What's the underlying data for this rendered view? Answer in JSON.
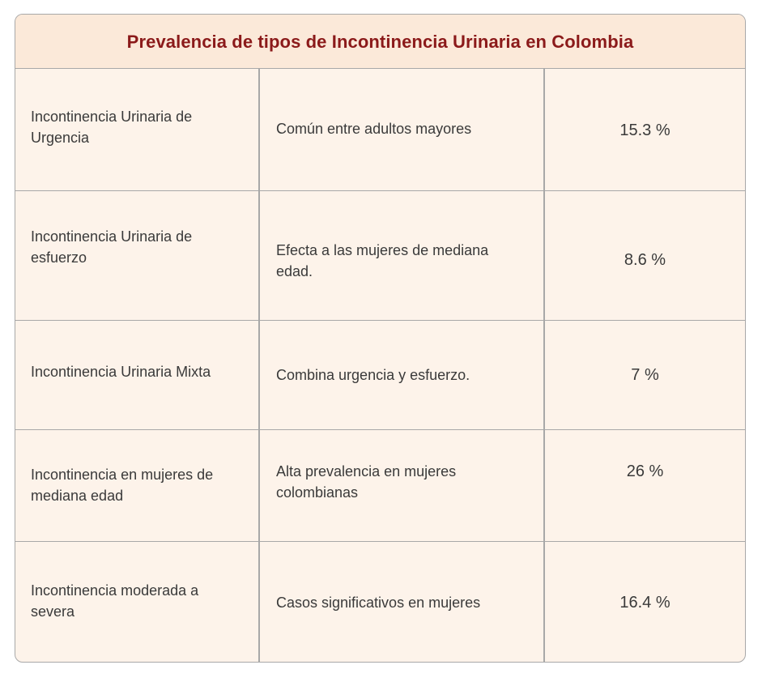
{
  "table": {
    "title": "Prevalencia de tipos de Incontinencia Urinaria en Colombia",
    "rows": [
      {
        "type": "Incontinencia Urinaria de Urgencia",
        "description": "Común entre adultos mayores",
        "prevalence": "15.3 %"
      },
      {
        "type": "Incontinencia Urinaria de esfuerzo",
        "description": "Efecta a las mujeres de mediana edad.",
        "prevalence": "8.6 %"
      },
      {
        "type": "Incontinencia Urinaria Mixta",
        "description": "Combina urgencia y esfuerzo.",
        "prevalence": "7 %"
      },
      {
        "type": "Incontinencia en mujeres de mediana edad",
        "description": "Alta prevalencia en mujeres colombianas",
        "prevalence": "26 %"
      },
      {
        "type": "Incontinencia moderada a severa",
        "description": "Casos significativos en mujeres",
        "prevalence": "16.4 %"
      }
    ]
  },
  "colors": {
    "title_text": "#8b1a1a",
    "title_background": "#fbe9d9",
    "cell_background": "#fdf3ea",
    "border": "#a8a8a8",
    "body_text": "#3a3a3a"
  }
}
